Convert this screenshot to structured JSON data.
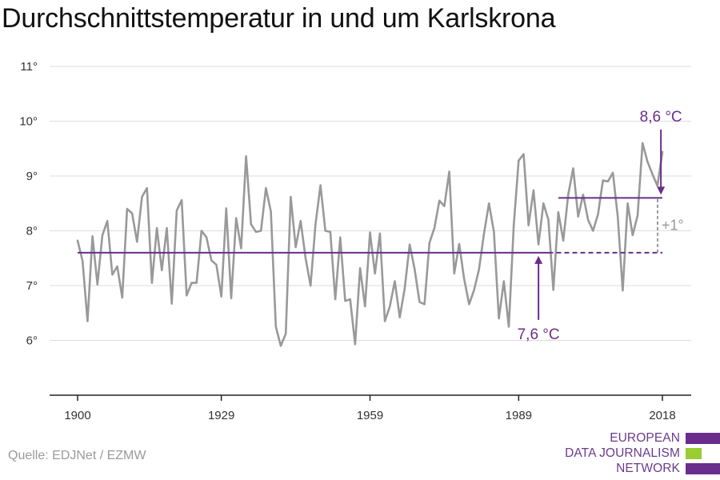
{
  "title": "Durchschnittstemperatur in und um Karlskrona",
  "source": "Quelle: EDJNet / EZMW",
  "logo": {
    "lines": [
      "EUROPEAN",
      "DATA JOURNALISM",
      "NETWORK"
    ],
    "colors": {
      "purple": "#6b2d8c",
      "green": "#9acd32"
    }
  },
  "chart_data": {
    "type": "line",
    "title": "Durchschnittstemperatur in und um Karlskrona",
    "xlabel": "",
    "ylabel": "",
    "xlim": [
      1900,
      2018
    ],
    "ylim": [
      5,
      11
    ],
    "x_ticks": [
      1900,
      1929,
      1959,
      1989,
      2018
    ],
    "y_ticks": [
      6,
      7,
      8,
      9,
      10,
      11
    ],
    "y_tick_labels": [
      "6°",
      "7°",
      "8°",
      "9°",
      "10°",
      "11°"
    ],
    "grid": true,
    "legend": "none",
    "series": [
      {
        "color": "#999999",
        "x": [
          1900,
          1901,
          1902,
          1903,
          1904,
          1905,
          1906,
          1907,
          1908,
          1909,
          1910,
          1911,
          1912,
          1913,
          1914,
          1915,
          1916,
          1917,
          1918,
          1919,
          1920,
          1921,
          1922,
          1923,
          1924,
          1925,
          1926,
          1927,
          1928,
          1929,
          1930,
          1931,
          1932,
          1933,
          1934,
          1935,
          1936,
          1937,
          1938,
          1939,
          1940,
          1941,
          1942,
          1943,
          1944,
          1945,
          1946,
          1947,
          1948,
          1949,
          1950,
          1951,
          1952,
          1953,
          1954,
          1955,
          1956,
          1957,
          1958,
          1959,
          1960,
          1961,
          1962,
          1963,
          1964,
          1965,
          1966,
          1967,
          1968,
          1969,
          1970,
          1971,
          1972,
          1973,
          1974,
          1975,
          1976,
          1977,
          1978,
          1979,
          1980,
          1981,
          1982,
          1983,
          1984,
          1985,
          1986,
          1987,
          1988,
          1989,
          1990,
          1991,
          1992,
          1993,
          1994,
          1995,
          1996,
          1997,
          1998,
          1999,
          2000,
          2001,
          2002,
          2003,
          2004,
          2005,
          2006,
          2007,
          2008,
          2009,
          2010,
          2011,
          2012,
          2013,
          2014,
          2015,
          2016,
          2017,
          2018
        ],
        "y": [
          7.82,
          7.45,
          6.35,
          7.9,
          7.02,
          7.92,
          8.18,
          7.2,
          7.35,
          6.78,
          8.4,
          8.32,
          7.8,
          8.62,
          8.78,
          7.05,
          8.05,
          7.28,
          8.05,
          6.67,
          8.37,
          8.56,
          6.82,
          7.05,
          7.05,
          8.0,
          7.88,
          7.46,
          7.38,
          6.8,
          8.41,
          6.77,
          8.23,
          7.68,
          9.36,
          8.12,
          7.98,
          8.0,
          8.78,
          8.35,
          6.25,
          5.9,
          6.12,
          8.62,
          7.7,
          8.18,
          7.5,
          7.0,
          8.12,
          8.83,
          8.0,
          7.98,
          6.75,
          7.88,
          6.72,
          6.75,
          5.93,
          7.32,
          6.62,
          7.97,
          7.22,
          7.95,
          6.35,
          6.62,
          7.08,
          6.42,
          6.95,
          7.75,
          7.3,
          6.7,
          6.66,
          7.78,
          8.05,
          8.55,
          8.45,
          9.08,
          7.22,
          7.76,
          7.12,
          6.66,
          6.92,
          7.3,
          7.95,
          8.5,
          7.98,
          6.4,
          7.08,
          6.25,
          8.1,
          9.28,
          9.4,
          8.1,
          8.74,
          7.75,
          8.5,
          8.2,
          6.92,
          8.34,
          7.82,
          8.66,
          9.14,
          8.26,
          8.66,
          8.2,
          8.0,
          8.3,
          8.92,
          8.9,
          9.06,
          8.26,
          6.91,
          8.5,
          7.92,
          8.28,
          9.6,
          9.26,
          9.03,
          8.82,
          9.44
        ]
      }
    ],
    "reference_lines": [
      {
        "label": "7,6 °C",
        "value": 7.6,
        "from": 1900,
        "to": 1995,
        "dashed_to": 2018,
        "color": "#6b2d8c"
      },
      {
        "label": "8,6 °C",
        "value": 8.6,
        "from": 1997,
        "to": 2018,
        "color": "#6b2d8c"
      }
    ],
    "annotations": [
      {
        "text": "+1°",
        "x": 2018,
        "from_value": 7.6,
        "to_value": 8.6,
        "color": "#999999"
      }
    ]
  }
}
